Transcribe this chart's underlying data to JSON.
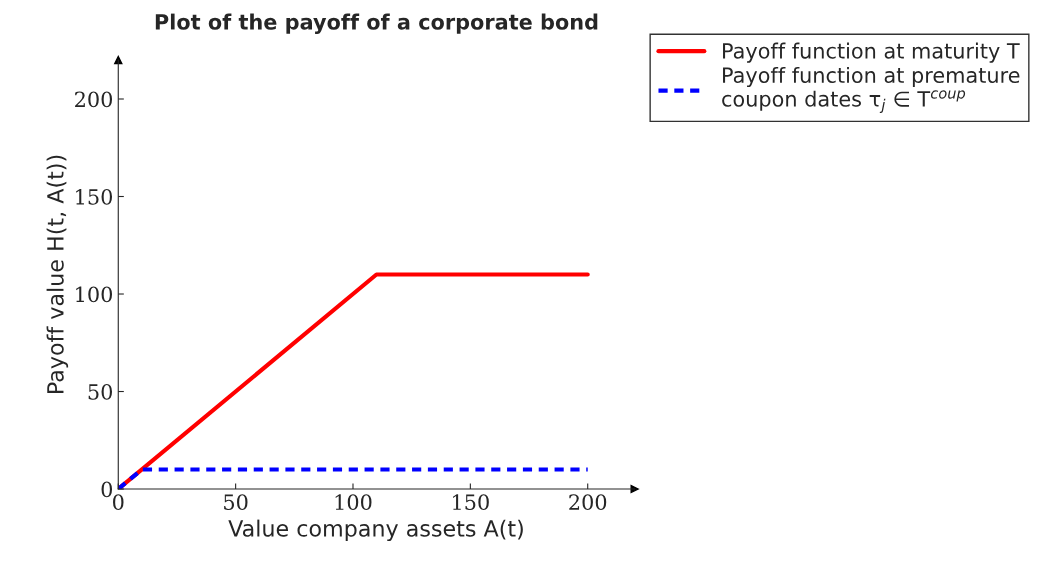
{
  "chart_data": {
    "type": "line",
    "title": "Plot of the payoff of a corporate bond",
    "xlabel": "Value company assets A(t)",
    "ylabel": "Payoff value H(t, A(t))",
    "series": [
      {
        "name": "Payoff function at maturity T",
        "color": "#ff0000",
        "x": [
          0,
          110,
          200
        ],
        "values": [
          0,
          110,
          110
        ],
        "line_style": "solid"
      },
      {
        "name": "Payoff function at premature\ncoupon dates τ$_{j}$ ∈ T$^{coup}$",
        "color": "#0000ff",
        "x": [
          0,
          10,
          200
        ],
        "values": [
          0,
          10,
          10
        ],
        "line_style": "dashed"
      }
    ],
    "xlim": [
      0,
      220
    ],
    "ylim": [
      0,
      220
    ],
    "xticks": [
      0,
      50,
      100,
      150,
      200
    ],
    "yticks": [
      0,
      50,
      100,
      150,
      200
    ],
    "grid": false,
    "legend": "top right",
    "marker": "none"
  }
}
